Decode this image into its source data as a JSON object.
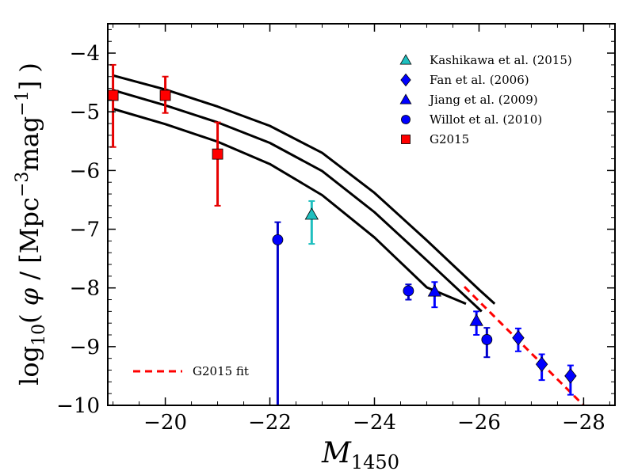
{
  "chart_data": {
    "type": "scatter",
    "xlabel": "M_1450",
    "xlabel_main": "M",
    "xlabel_sub": "1450",
    "ylabel": "log10( φ / [Mpc^-3 mag^-1] )",
    "ylabel_parts": {
      "log": "log",
      "log_sub": "10",
      "open": "( ",
      "phi": "φ",
      "mid": " / [Mpc",
      "exp1": "−3",
      "mag": "mag",
      "exp2": "−1",
      "close": "] )"
    },
    "xlim": [
      -18.9,
      -28.6
    ],
    "ylim": [
      -10,
      -3.5
    ],
    "x_ticks": [
      -20,
      -22,
      -24,
      -26,
      -28
    ],
    "x_tick_labels": [
      "−20",
      "−22",
      "−24",
      "−26",
      "−28"
    ],
    "y_ticks": [
      -4,
      -5,
      -6,
      -7,
      -8,
      -9,
      -10
    ],
    "y_tick_labels": [
      "−4",
      "−5",
      "−6",
      "−7",
      "−8",
      "−9",
      "−10"
    ],
    "curves": [
      {
        "name": "upper",
        "color": "#000000",
        "x": [
          -19,
          -20,
          -21,
          -22,
          -23,
          -24,
          -25,
          -26,
          -26.3
        ],
        "y": [
          -4.38,
          -4.62,
          -4.91,
          -5.24,
          -5.7,
          -6.38,
          -7.19,
          -8.03,
          -8.27
        ]
      },
      {
        "name": "middle",
        "color": "#000000",
        "x": [
          -19,
          -20,
          -21,
          -22,
          -23,
          -24,
          -25,
          -26,
          -26.05
        ],
        "y": [
          -4.63,
          -4.89,
          -5.18,
          -5.53,
          -6.01,
          -6.71,
          -7.53,
          -8.36,
          -8.4
        ]
      },
      {
        "name": "lower",
        "color": "#000000",
        "x": [
          -19,
          -20,
          -21,
          -22,
          -23,
          -24,
          -25,
          -25.75
        ],
        "y": [
          -4.95,
          -5.21,
          -5.51,
          -5.89,
          -6.42,
          -7.14,
          -7.99,
          -8.27
        ]
      }
    ],
    "fit_line": {
      "name": "G2015 fit",
      "color": "#ff0000",
      "x": [
        -25.72,
        -28.0
      ],
      "y": [
        -7.98,
        -10.0
      ]
    },
    "series": [
      {
        "name": "Kashikawa et al. (2015)",
        "marker": "triangle",
        "color": "#1fbfbf",
        "ecolor": "#1fbfbf",
        "points": [
          {
            "x": -22.8,
            "y": -6.75,
            "ylo": -7.25,
            "yhi": -6.52
          }
        ]
      },
      {
        "name": "Fan et al. (2006)",
        "marker": "diamond",
        "color": "#0000ff",
        "ecolor": "#0000ff",
        "points": [
          {
            "x": -26.75,
            "y": -8.85,
            "ylo": -9.08,
            "yhi": -8.69
          },
          {
            "x": -27.2,
            "y": -9.3,
            "ylo": -9.57,
            "yhi": -9.13
          },
          {
            "x": -27.75,
            "y": -9.5,
            "ylo": -9.82,
            "yhi": -9.32
          }
        ]
      },
      {
        "name": "Jiang et al. (2009)",
        "marker": "triangle",
        "color": "#0000ff",
        "ecolor": "#0000ff",
        "points": [
          {
            "x": -25.15,
            "y": -8.06,
            "ylo": -8.33,
            "yhi": -7.9
          },
          {
            "x": -25.95,
            "y": -8.56,
            "ylo": -8.8,
            "yhi": -8.4
          }
        ]
      },
      {
        "name": "Willot et al. (2010)",
        "marker": "circle",
        "color": "#0000ff",
        "ecolor": "#0000cc",
        "points": [
          {
            "x": -22.15,
            "y": -7.18,
            "ylo": -10.0,
            "yhi": -6.88
          },
          {
            "x": -24.65,
            "y": -8.05,
            "ylo": -8.2,
            "yhi": -7.94
          },
          {
            "x": -26.15,
            "y": -8.88,
            "ylo": -9.18,
            "yhi": -8.68
          }
        ]
      },
      {
        "name": "G2015",
        "marker": "square",
        "color": "#ff0000",
        "ecolor": "#e60000",
        "points": [
          {
            "x": -19.0,
            "y": -4.72,
            "ylo": -5.6,
            "yhi": -4.2
          },
          {
            "x": -20.0,
            "y": -4.72,
            "ylo": -5.02,
            "yhi": -4.4
          },
          {
            "x": -21.0,
            "y": -5.72,
            "ylo": -6.6,
            "yhi": -5.18
          }
        ]
      }
    ],
    "legend_entries": [
      "Kashikawa et al. (2015)",
      "Fan et al. (2006)",
      "Jiang et al. (2009)",
      "Willot et al. (2010)",
      "G2015"
    ],
    "legend_placement": "top-right",
    "fit_legend_label": "G2015 fit",
    "fit_legend_placement": "bottom-left"
  }
}
